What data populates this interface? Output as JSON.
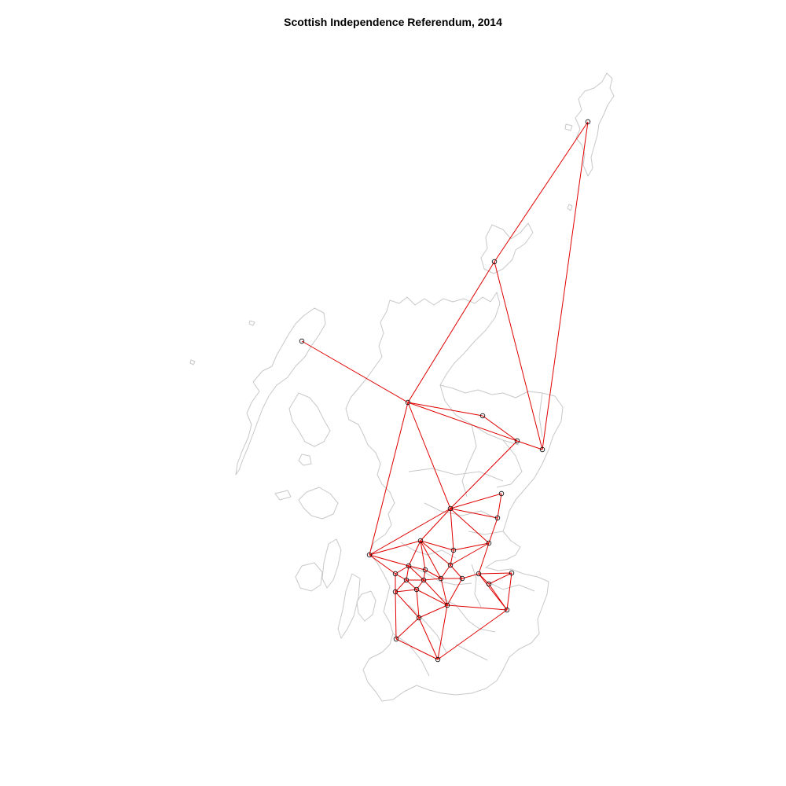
{
  "title": "Scottish Independence Referendum, 2014",
  "colors": {
    "outline": "#c8c8c8",
    "network": "#e00000",
    "node": "#000000"
  },
  "network": {
    "nodes": [
      {
        "id": "shetland"
      },
      {
        "id": "orkney"
      },
      {
        "id": "eilean-siar"
      },
      {
        "id": "highland"
      },
      {
        "id": "moray"
      },
      {
        "id": "aberdeenshire"
      },
      {
        "id": "aberdeen"
      },
      {
        "id": "angus"
      },
      {
        "id": "dundee"
      },
      {
        "id": "perth-kinross"
      },
      {
        "id": "fife"
      },
      {
        "id": "argyll-bute"
      },
      {
        "id": "stirling"
      },
      {
        "id": "clackmannanshire"
      },
      {
        "id": "falkirk"
      },
      {
        "id": "west-lothian"
      },
      {
        "id": "edinburgh"
      },
      {
        "id": "midlothian"
      },
      {
        "id": "east-lothian"
      },
      {
        "id": "scottish-borders"
      },
      {
        "id": "west-dunbartonshire"
      },
      {
        "id": "east-dunbartonshire"
      },
      {
        "id": "inverclyde"
      },
      {
        "id": "renfrewshire"
      },
      {
        "id": "glasgow"
      },
      {
        "id": "north-lanarkshire"
      },
      {
        "id": "east-renfrewshire"
      },
      {
        "id": "south-lanarkshire"
      },
      {
        "id": "east-ayrshire"
      },
      {
        "id": "north-ayrshire"
      },
      {
        "id": "south-ayrshire"
      },
      {
        "id": "dumfries-galloway"
      }
    ],
    "edges": [
      [
        "shetland",
        "orkney"
      ],
      [
        "shetland",
        "aberdeen"
      ],
      [
        "orkney",
        "highland"
      ],
      [
        "orkney",
        "aberdeen"
      ],
      [
        "eilean-siar",
        "highland"
      ],
      [
        "highland",
        "moray"
      ],
      [
        "highland",
        "aberdeenshire"
      ],
      [
        "highland",
        "perth-kinross"
      ],
      [
        "highland",
        "argyll-bute"
      ],
      [
        "moray",
        "aberdeenshire"
      ],
      [
        "aberdeenshire",
        "aberdeen"
      ],
      [
        "aberdeenshire",
        "perth-kinross"
      ],
      [
        "perth-kinross",
        "angus"
      ],
      [
        "perth-kinross",
        "dundee"
      ],
      [
        "perth-kinross",
        "fife"
      ],
      [
        "perth-kinross",
        "stirling"
      ],
      [
        "perth-kinross",
        "argyll-bute"
      ],
      [
        "perth-kinross",
        "clackmannanshire"
      ],
      [
        "angus",
        "dundee"
      ],
      [
        "dundee",
        "fife"
      ],
      [
        "fife",
        "clackmannanshire"
      ],
      [
        "fife",
        "edinburgh"
      ],
      [
        "fife",
        "falkirk"
      ],
      [
        "argyll-bute",
        "stirling"
      ],
      [
        "argyll-bute",
        "west-dunbartonshire"
      ],
      [
        "argyll-bute",
        "inverclyde"
      ],
      [
        "stirling",
        "clackmannanshire"
      ],
      [
        "stirling",
        "falkirk"
      ],
      [
        "stirling",
        "west-dunbartonshire"
      ],
      [
        "stirling",
        "east-dunbartonshire"
      ],
      [
        "stirling",
        "north-lanarkshire"
      ],
      [
        "clackmannanshire",
        "falkirk"
      ],
      [
        "falkirk",
        "west-lothian"
      ],
      [
        "falkirk",
        "north-lanarkshire"
      ],
      [
        "west-lothian",
        "edinburgh"
      ],
      [
        "west-lothian",
        "south-lanarkshire"
      ],
      [
        "west-lothian",
        "north-lanarkshire"
      ],
      [
        "edinburgh",
        "midlothian"
      ],
      [
        "edinburgh",
        "east-lothian"
      ],
      [
        "edinburgh",
        "scottish-borders"
      ],
      [
        "midlothian",
        "east-lothian"
      ],
      [
        "midlothian",
        "scottish-borders"
      ],
      [
        "east-lothian",
        "scottish-borders"
      ],
      [
        "west-dunbartonshire",
        "east-dunbartonshire"
      ],
      [
        "west-dunbartonshire",
        "glasgow"
      ],
      [
        "west-dunbartonshire",
        "renfrewshire"
      ],
      [
        "west-dunbartonshire",
        "inverclyde"
      ],
      [
        "east-dunbartonshire",
        "glasgow"
      ],
      [
        "east-dunbartonshire",
        "north-lanarkshire"
      ],
      [
        "inverclyde",
        "renfrewshire"
      ],
      [
        "inverclyde",
        "north-ayrshire"
      ],
      [
        "renfrewshire",
        "glasgow"
      ],
      [
        "renfrewshire",
        "east-renfrewshire"
      ],
      [
        "renfrewshire",
        "north-ayrshire"
      ],
      [
        "glasgow",
        "north-lanarkshire"
      ],
      [
        "glasgow",
        "east-renfrewshire"
      ],
      [
        "glasgow",
        "south-lanarkshire"
      ],
      [
        "north-lanarkshire",
        "south-lanarkshire"
      ],
      [
        "east-renfrewshire",
        "south-lanarkshire"
      ],
      [
        "east-renfrewshire",
        "east-ayrshire"
      ],
      [
        "east-renfrewshire",
        "north-ayrshire"
      ],
      [
        "south-lanarkshire",
        "east-ayrshire"
      ],
      [
        "south-lanarkshire",
        "scottish-borders"
      ],
      [
        "south-lanarkshire",
        "dumfries-galloway"
      ],
      [
        "east-ayrshire",
        "north-ayrshire"
      ],
      [
        "east-ayrshire",
        "south-ayrshire"
      ],
      [
        "east-ayrshire",
        "dumfries-galloway"
      ],
      [
        "north-ayrshire",
        "south-ayrshire"
      ],
      [
        "south-ayrshire",
        "dumfries-galloway"
      ],
      [
        "scottish-borders",
        "dumfries-galloway"
      ]
    ]
  }
}
